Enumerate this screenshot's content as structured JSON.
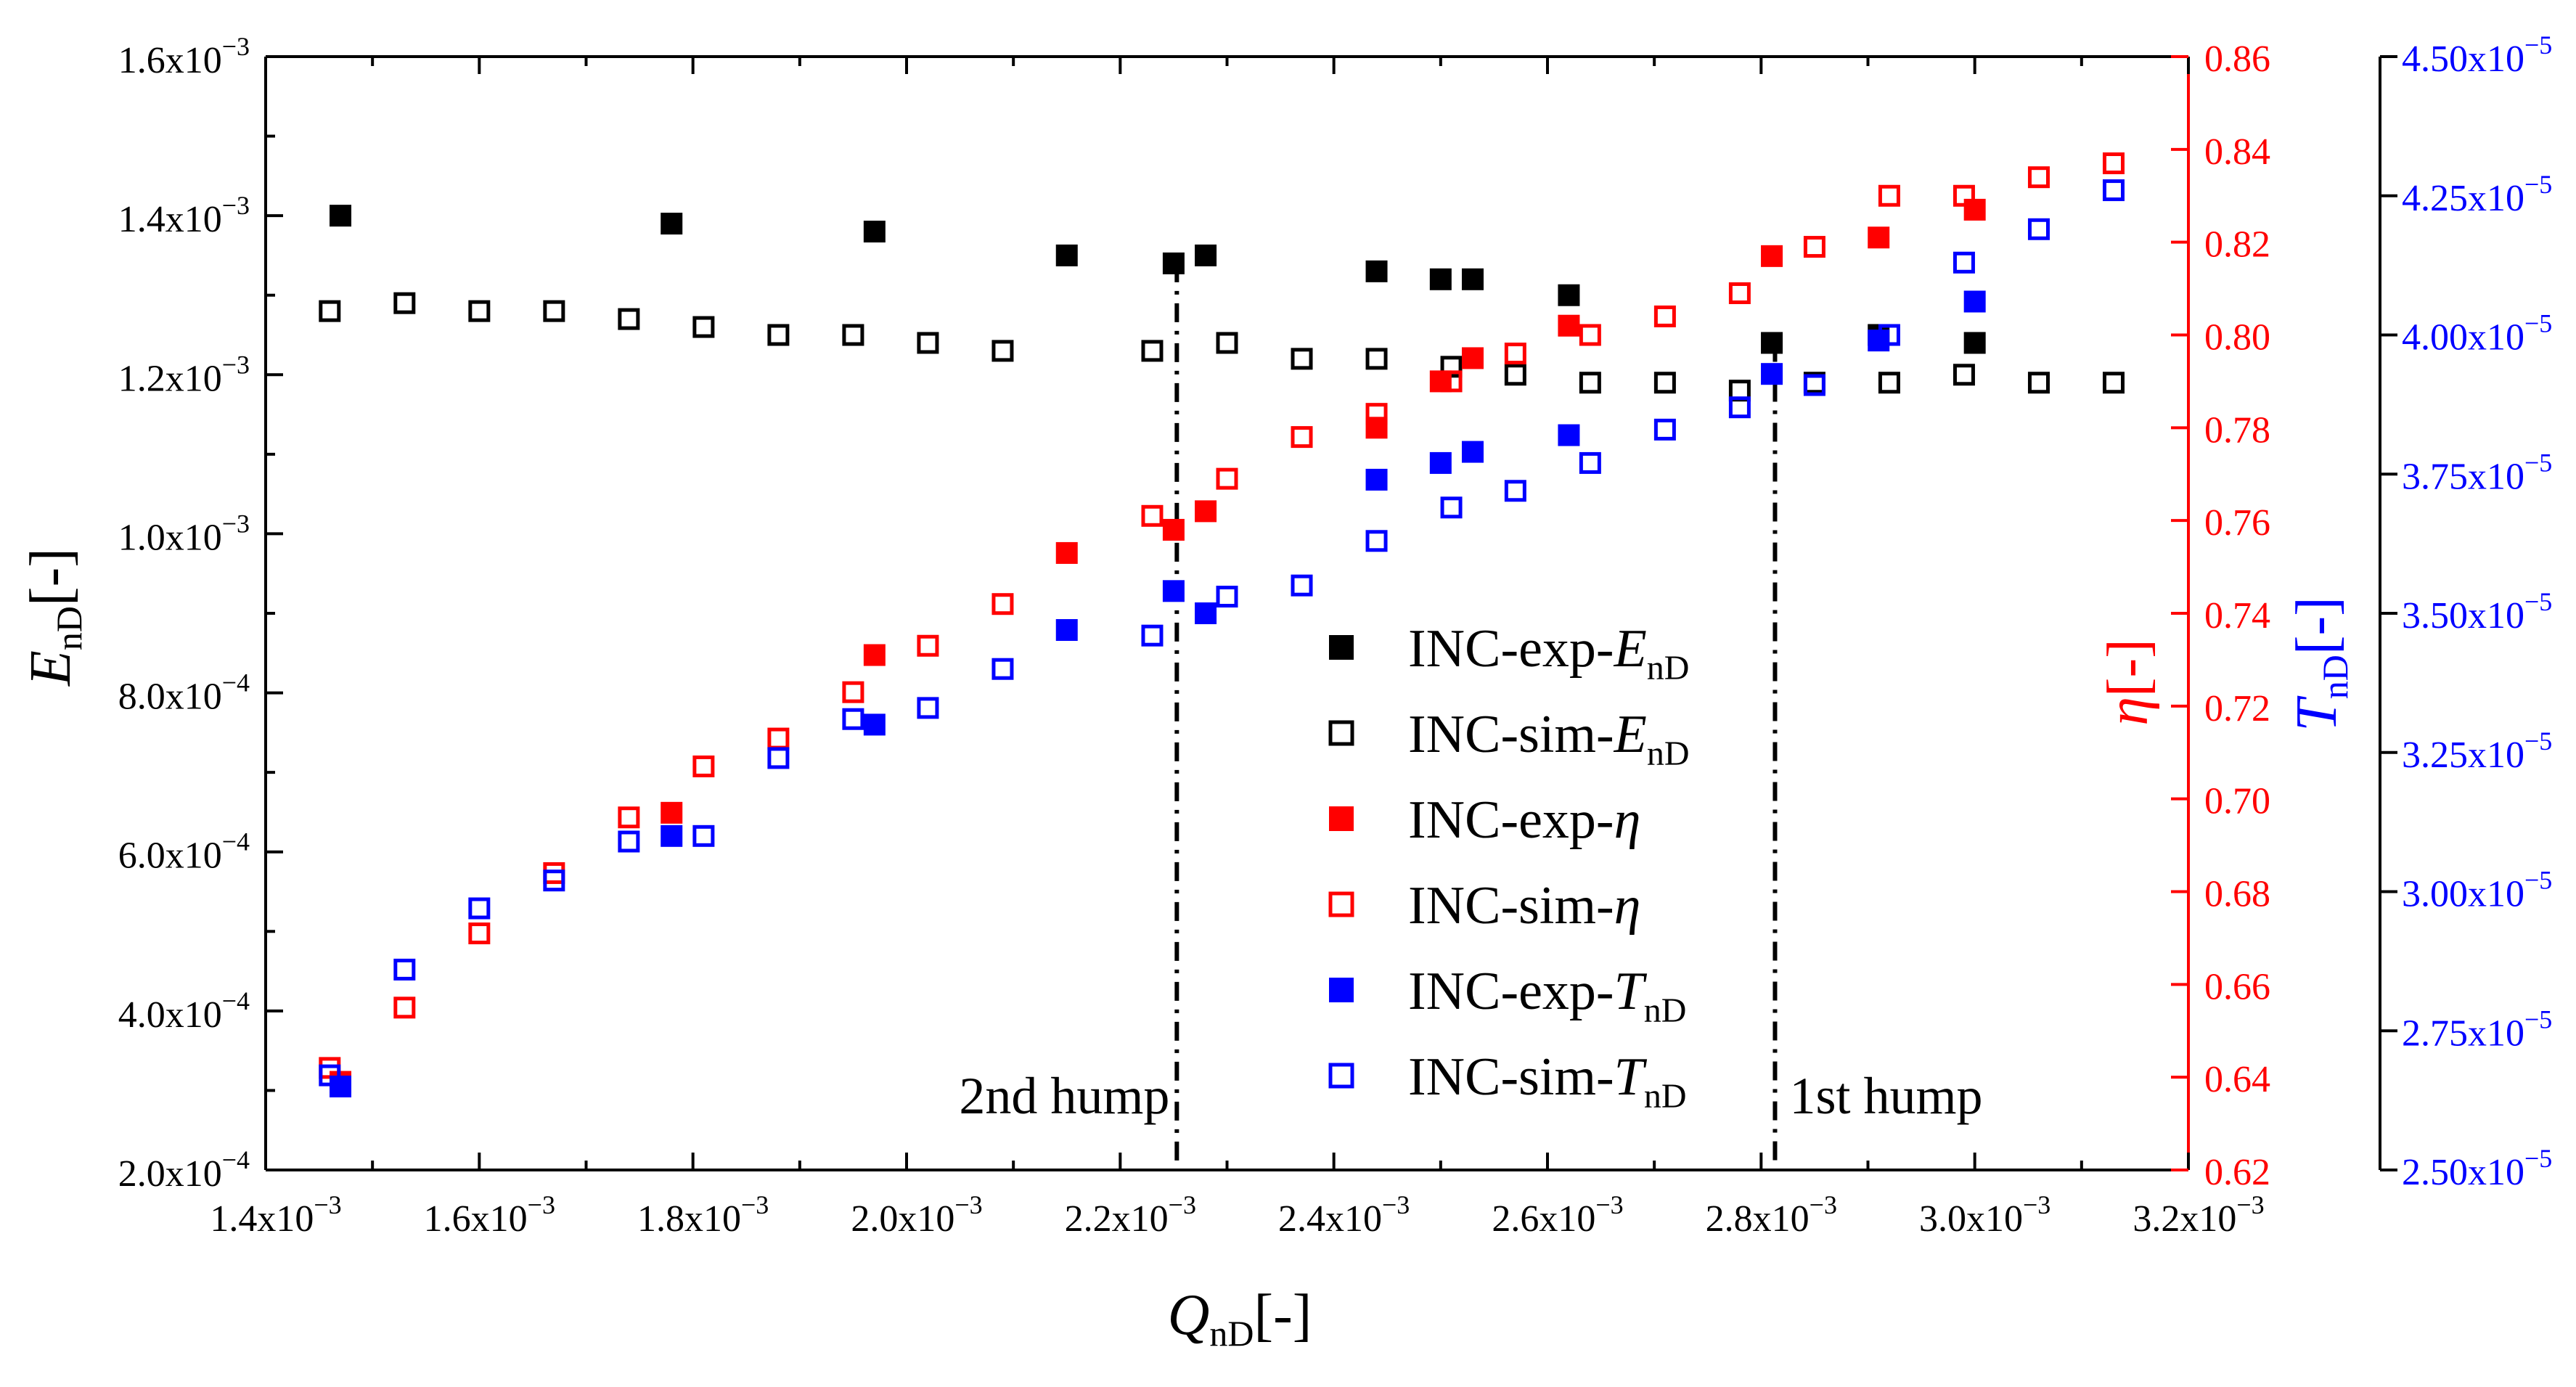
{
  "colors": {
    "black": "#000000",
    "red": "#ff0000",
    "blue": "#0000ff"
  },
  "chart_data": {
    "type": "scatter",
    "x_axis": {
      "label_main": "Q",
      "label_sub": "nD",
      "label_suffix": "[-]",
      "range": [
        0.0014,
        0.0032
      ],
      "ticks": [
        0.0014,
        0.0016,
        0.0018,
        0.002,
        0.0022,
        0.0024,
        0.0026,
        0.0028,
        0.003,
        0.0032
      ],
      "tick_labels": [
        {
          "mant": "1.4x10",
          "exp": "-3"
        },
        {
          "mant": "1.6x10",
          "exp": "-3"
        },
        {
          "mant": "1.8x10",
          "exp": "-3"
        },
        {
          "mant": "2.0x10",
          "exp": "-3"
        },
        {
          "mant": "2.2x10",
          "exp": "-3"
        },
        {
          "mant": "2.4x10",
          "exp": "-3"
        },
        {
          "mant": "2.6x10",
          "exp": "-3"
        },
        {
          "mant": "2.8x10",
          "exp": "-3"
        },
        {
          "mant": "3.0x10",
          "exp": "-3"
        },
        {
          "mant": "3.2x10",
          "exp": "-3"
        }
      ]
    },
    "y_left": {
      "label_main": "E",
      "label_sub": "nD",
      "label_suffix": "[-]",
      "range": [
        0.0002,
        0.0016
      ],
      "ticks": [
        0.0002,
        0.0004,
        0.0006,
        0.0008,
        0.001,
        0.0012,
        0.0014,
        0.0016
      ],
      "tick_labels": [
        {
          "mant": "2.0x10",
          "exp": "-4"
        },
        {
          "mant": "4.0x10",
          "exp": "-4"
        },
        {
          "mant": "6.0x10",
          "exp": "-4"
        },
        {
          "mant": "8.0x10",
          "exp": "-4"
        },
        {
          "mant": "1.0x10",
          "exp": "-3"
        },
        {
          "mant": "1.2x10",
          "exp": "-3"
        },
        {
          "mant": "1.4x10",
          "exp": "-3"
        },
        {
          "mant": "1.6x10",
          "exp": "-3"
        }
      ]
    },
    "y_right_eta": {
      "label_main": "η",
      "label_suffix": "[-]",
      "range": [
        0.62,
        0.86
      ],
      "ticks": [
        0.62,
        0.64,
        0.66,
        0.68,
        0.7,
        0.72,
        0.74,
        0.76,
        0.78,
        0.8,
        0.82,
        0.84,
        0.86
      ],
      "tick_labels": [
        "0.62",
        "0.64",
        "0.66",
        "0.68",
        "0.70",
        "0.72",
        "0.74",
        "0.76",
        "0.78",
        "0.80",
        "0.82",
        "0.84",
        "0.86"
      ]
    },
    "y_right_T": {
      "label_main": "T",
      "label_sub": "nD",
      "label_suffix": "[-]",
      "range": [
        2.5e-05,
        4.5e-05
      ],
      "ticks": [
        2.5e-05,
        2.75e-05,
        3e-05,
        3.25e-05,
        3.5e-05,
        3.75e-05,
        4e-05,
        4.25e-05,
        4.5e-05
      ],
      "tick_labels": [
        {
          "mant": "2.50x10",
          "exp": "-5"
        },
        {
          "mant": "2.75x10",
          "exp": "-5"
        },
        {
          "mant": "3.00x10",
          "exp": "-5"
        },
        {
          "mant": "3.25x10",
          "exp": "-5"
        },
        {
          "mant": "3.50x10",
          "exp": "-5"
        },
        {
          "mant": "3.75x10",
          "exp": "-5"
        },
        {
          "mant": "4.00x10",
          "exp": "-5"
        },
        {
          "mant": "4.25x10",
          "exp": "-5"
        },
        {
          "mant": "4.50x10",
          "exp": "-5"
        }
      ]
    },
    "series": [
      {
        "name": "INC-exp-E_nD",
        "axis": "left",
        "color": "black",
        "filled": true,
        "legend": {
          "main": "INC-exp-",
          "italic": "E",
          "sub": "nD"
        },
        "x": [
          0.00147,
          0.00178,
          0.00197,
          0.00215,
          0.00225,
          0.00228,
          0.00244,
          0.0025,
          0.00253,
          0.00262,
          0.00281,
          0.00291,
          0.003
        ],
        "y": [
          0.0014,
          0.00139,
          0.00138,
          0.00135,
          0.00134,
          0.00135,
          0.00133,
          0.00132,
          0.00132,
          0.0013,
          0.00124,
          0.00125,
          0.00124
        ]
      },
      {
        "name": "INC-sim-E_nD",
        "axis": "left",
        "color": "black",
        "filled": false,
        "legend": {
          "main": "INC-sim-",
          "italic": "E",
          "sub": "nD"
        },
        "x": [
          0.00146,
          0.00153,
          0.0016,
          0.00167,
          0.00174,
          0.00181,
          0.00188,
          0.00195,
          0.00202,
          0.00209,
          0.00223,
          0.0023,
          0.00237,
          0.00244,
          0.00251,
          0.00257,
          0.00264,
          0.00271,
          0.00278,
          0.00285,
          0.00292,
          0.00299,
          0.00306,
          0.00313
        ],
        "y": [
          0.00128,
          0.00129,
          0.00128,
          0.00128,
          0.00127,
          0.00126,
          0.00125,
          0.00125,
          0.00124,
          0.00123,
          0.00123,
          0.00124,
          0.00122,
          0.00122,
          0.00121,
          0.0012,
          0.00119,
          0.00119,
          0.00118,
          0.00119,
          0.00119,
          0.0012,
          0.00119,
          0.00119
        ]
      },
      {
        "name": "INC-exp-eta",
        "axis": "eta",
        "color": "red",
        "filled": true,
        "legend": {
          "main": "INC-exp-",
          "italic": "η",
          "sub": ""
        },
        "x": [
          0.00147,
          0.00178,
          0.00197,
          0.00215,
          0.00225,
          0.00228,
          0.00244,
          0.0025,
          0.00253,
          0.00262,
          0.00281,
          0.00291,
          0.003
        ],
        "y": [
          0.639,
          0.697,
          0.731,
          0.753,
          0.758,
          0.762,
          0.78,
          0.79,
          0.795,
          0.802,
          0.817,
          0.821,
          0.827
        ]
      },
      {
        "name": "INC-sim-eta",
        "axis": "eta",
        "color": "red",
        "filled": false,
        "legend": {
          "main": "INC-sim-",
          "italic": "η",
          "sub": ""
        },
        "x": [
          0.00146,
          0.00153,
          0.0016,
          0.00167,
          0.00174,
          0.00181,
          0.00188,
          0.00195,
          0.00202,
          0.00209,
          0.00223,
          0.0023,
          0.00237,
          0.00244,
          0.00251,
          0.00257,
          0.00264,
          0.00271,
          0.00278,
          0.00285,
          0.00292,
          0.00299,
          0.00306,
          0.00313
        ],
        "y": [
          0.642,
          0.655,
          0.671,
          0.684,
          0.696,
          0.707,
          0.713,
          0.723,
          0.733,
          0.742,
          0.761,
          0.769,
          0.778,
          0.783,
          0.79,
          0.796,
          0.8,
          0.804,
          0.809,
          0.819,
          0.83,
          0.83,
          0.834,
          0.837
        ]
      },
      {
        "name": "INC-exp-T_nD",
        "axis": "T",
        "color": "blue",
        "filled": true,
        "legend": {
          "main": "INC-exp-",
          "italic": "T",
          "sub": "nD"
        },
        "x": [
          0.00147,
          0.00178,
          0.00197,
          0.00215,
          0.00225,
          0.00228,
          0.00244,
          0.0025,
          0.00253,
          0.00262,
          0.00281,
          0.00291,
          0.003
        ],
        "y": [
          2.65e-05,
          3.1e-05,
          3.3e-05,
          3.47e-05,
          3.54e-05,
          3.5e-05,
          3.74e-05,
          3.77e-05,
          3.79e-05,
          3.82e-05,
          3.93e-05,
          3.99e-05,
          4.06e-05
        ]
      },
      {
        "name": "INC-sim-T_nD",
        "axis": "T",
        "color": "blue",
        "filled": false,
        "legend": {
          "main": "INC-sim-",
          "italic": "T",
          "sub": "nD"
        },
        "x": [
          0.00146,
          0.00153,
          0.0016,
          0.00167,
          0.00174,
          0.00181,
          0.00188,
          0.00195,
          0.00202,
          0.00209,
          0.00223,
          0.0023,
          0.00237,
          0.00244,
          0.00251,
          0.00257,
          0.00264,
          0.00271,
          0.00278,
          0.00285,
          0.00292,
          0.00299,
          0.00306,
          0.00313
        ],
        "y": [
          2.67e-05,
          2.86e-05,
          2.97e-05,
          3.02e-05,
          3.09e-05,
          3.1e-05,
          3.24e-05,
          3.31e-05,
          3.33e-05,
          3.4e-05,
          3.46e-05,
          3.53e-05,
          3.55e-05,
          3.63e-05,
          3.69e-05,
          3.72e-05,
          3.77e-05,
          3.83e-05,
          3.87e-05,
          3.91e-05,
          4e-05,
          4.13e-05,
          4.19e-05,
          4.26e-05
        ]
      }
    ],
    "vlines": [
      {
        "x": 0.002253,
        "top_y": 0.00134,
        "label": "2nd hump",
        "label_side": "left"
      },
      {
        "x": 0.002813,
        "top_y": 0.00124,
        "label": "1st hump",
        "label_side": "right"
      }
    ],
    "legend_position": "center-right inside plot"
  }
}
